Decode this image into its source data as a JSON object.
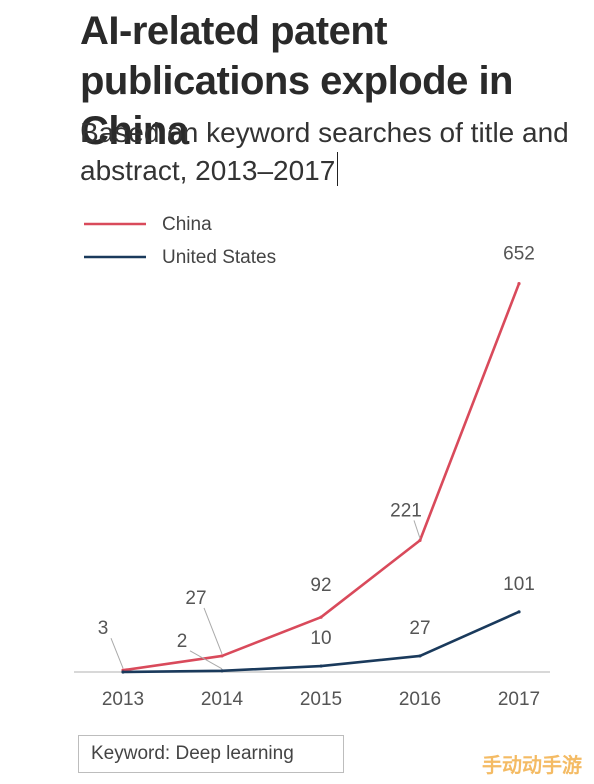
{
  "header": {
    "title": "AI-related patent publications explode in China",
    "subtitle": "Based on keyword searches of title and abstract, 2013–2017"
  },
  "note": "Keyword: Deep learning",
  "watermark": "手动动手游",
  "colors": {
    "china": "#d94a5b",
    "united_states": "#1a3a5c",
    "text": "#444444",
    "axis": "#cccccc"
  },
  "chart_data": {
    "type": "line",
    "title": "AI-related patent publications explode in China",
    "subtitle": "Based on keyword searches of title and abstract, 2013–2017",
    "x": [
      "2013",
      "2014",
      "2015",
      "2016",
      "2017"
    ],
    "series": [
      {
        "name": "China",
        "values": [
          3,
          27,
          92,
          221,
          652
        ],
        "color": "#d94a5b"
      },
      {
        "name": "United States",
        "values": [
          0,
          2,
          10,
          27,
          101
        ],
        "color": "#1a3a5c"
      }
    ],
    "labels": {
      "China": [
        "3",
        "27",
        "92",
        "221",
        "652"
      ],
      "United States": [
        "",
        "2",
        "10",
        "27",
        "101"
      ]
    },
    "xlabel": "",
    "ylabel": "",
    "ylim": [
      0,
      700
    ],
    "grid": false,
    "legend": "top-left"
  }
}
